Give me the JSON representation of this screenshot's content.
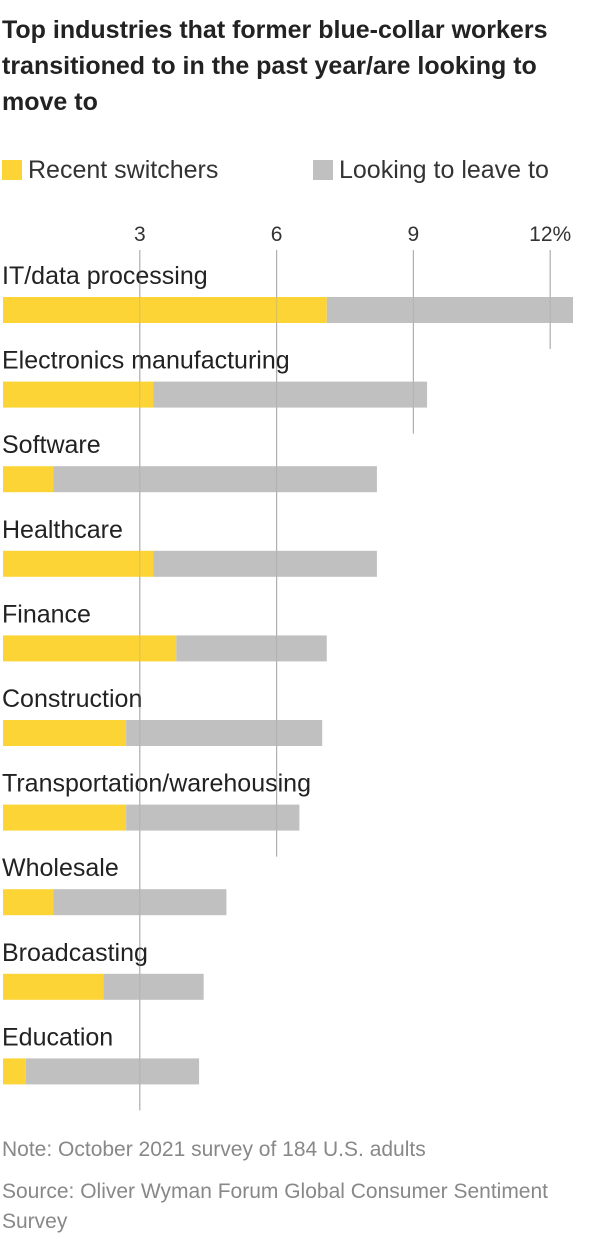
{
  "colors": {
    "recent": "#fdd436",
    "looking": "#c0c0c0",
    "grid": "#bbbbbb"
  },
  "legend": {
    "recent_label": "Recent switchers",
    "looking_label": "Looking to leave to"
  },
  "footer": {
    "note": "Note: October 2021 survey of 184 U.S. adults",
    "source": "Source: Oliver Wyman Forum Global Consumer Sentiment Survey"
  },
  "chart_data": {
    "type": "bar",
    "orientation": "horizontal",
    "stacked": true,
    "title": "Top industries that former blue-collar workers transitioned to in the past year/are looking to move to",
    "categories": [
      "IT/data processing",
      "Electronics manufacturing",
      "Software",
      "Healthcare",
      "Finance",
      "Construction",
      "Transportation/warehousing",
      "Wholesale",
      "Broadcasting",
      "Education"
    ],
    "series": [
      {
        "name": "Recent switchers",
        "values": [
          7.1,
          3.3,
          1.1,
          3.3,
          3.8,
          2.7,
          2.7,
          1.1,
          2.2,
          0.5
        ]
      },
      {
        "name": "Looking to leave to",
        "values": [
          5.4,
          6.0,
          7.1,
          4.9,
          3.3,
          4.3,
          3.8,
          3.8,
          2.2,
          3.8
        ]
      }
    ],
    "xlim": [
      0,
      13.1
    ],
    "ticks": [
      3,
      6,
      9,
      12
    ],
    "tick_labels": [
      "3",
      "6",
      "9",
      "12%"
    ],
    "legend_position": "top",
    "grid": true
  }
}
